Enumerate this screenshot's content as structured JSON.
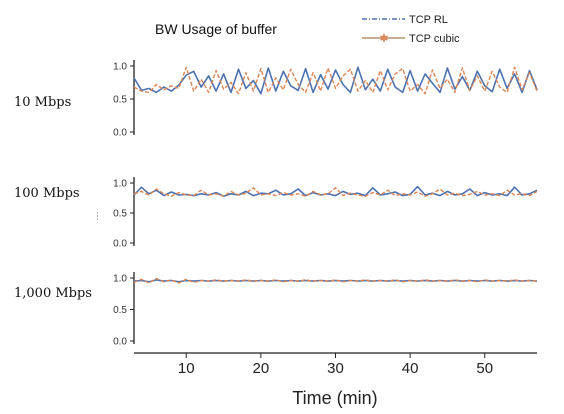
{
  "chart_data": {
    "type": "line",
    "title": "BW Usage of buffer",
    "xlabel": "Time (min)",
    "xlim": [
      3,
      57
    ],
    "xticks": [
      10,
      20,
      30,
      40,
      50
    ],
    "ylim": [
      0,
      1
    ],
    "yticks": [
      "0.0",
      "0.5",
      "1.0"
    ],
    "legend_position": "top-right",
    "x": [
      3,
      4,
      5,
      6,
      7,
      8,
      9,
      10,
      11,
      12,
      13,
      14,
      15,
      16,
      17,
      18,
      19,
      20,
      21,
      22,
      23,
      24,
      25,
      26,
      27,
      28,
      29,
      30,
      31,
      32,
      33,
      34,
      35,
      36,
      37,
      38,
      39,
      40,
      41,
      42,
      43,
      44,
      45,
      46,
      47,
      48,
      49,
      50,
      51,
      52,
      53,
      54,
      55,
      56,
      57
    ],
    "series": [
      {
        "name": "TCP RL",
        "color": "#4c72b0",
        "style": "solid"
      },
      {
        "name": "TCP cubic",
        "color": "#dd8452",
        "style": "dashed"
      }
    ],
    "panels": [
      {
        "label": "10 Mbps",
        "values": [
          [
            0.82,
            0.63,
            0.66,
            0.6,
            0.68,
            0.62,
            0.71,
            0.86,
            0.92,
            0.68,
            0.85,
            0.62,
            0.88,
            0.6,
            0.95,
            0.66,
            0.78,
            0.58,
            0.97,
            0.62,
            0.92,
            0.7,
            0.63,
            0.96,
            0.6,
            0.87,
            0.65,
            0.94,
            0.72,
            0.6,
            0.98,
            0.64,
            0.8,
            0.62,
            0.95,
            0.68,
            0.6,
            0.93,
            0.62,
            0.88,
            0.74,
            0.6,
            0.97,
            0.65,
            0.84,
            0.63,
            0.92,
            0.7,
            0.61,
            0.95,
            0.66,
            0.88,
            0.6,
            0.93,
            0.64
          ],
          [
            0.68,
            0.62,
            0.6,
            0.72,
            0.64,
            0.7,
            0.66,
            0.98,
            0.62,
            0.8,
            0.6,
            0.93,
            0.65,
            0.75,
            0.58,
            0.9,
            0.62,
            0.96,
            0.6,
            0.82,
            0.64,
            0.95,
            0.72,
            0.6,
            0.9,
            0.62,
            0.97,
            0.66,
            0.85,
            0.95,
            0.62,
            0.78,
            0.6,
            0.93,
            0.64,
            0.88,
            0.96,
            0.62,
            0.72,
            0.58,
            0.94,
            0.66,
            0.8,
            0.6,
            0.97,
            0.63,
            0.85,
            0.62,
            0.92,
            0.68,
            0.6,
            0.98,
            0.64,
            0.9,
            0.62
          ]
        ]
      },
      {
        "label": "100 Mbps",
        "values": [
          [
            0.8,
            0.93,
            0.82,
            0.88,
            0.79,
            0.85,
            0.8,
            0.81,
            0.79,
            0.82,
            0.8,
            0.84,
            0.78,
            0.82,
            0.8,
            0.86,
            0.79,
            0.83,
            0.82,
            0.88,
            0.8,
            0.82,
            0.9,
            0.79,
            0.84,
            0.8,
            0.82,
            0.79,
            0.86,
            0.81,
            0.83,
            0.79,
            0.92,
            0.8,
            0.82,
            0.85,
            0.79,
            0.81,
            0.94,
            0.8,
            0.83,
            0.79,
            0.86,
            0.8,
            0.82,
            0.9,
            0.79,
            0.84,
            0.8,
            0.82,
            0.79,
            0.93,
            0.8,
            0.82,
            0.88
          ],
          [
            0.82,
            0.86,
            0.8,
            0.9,
            0.82,
            0.78,
            0.84,
            0.8,
            0.79,
            0.88,
            0.8,
            0.82,
            0.78,
            0.86,
            0.8,
            0.83,
            0.92,
            0.8,
            0.82,
            0.79,
            0.84,
            0.8,
            0.82,
            0.78,
            0.86,
            0.8,
            0.82,
            0.92,
            0.79,
            0.83,
            0.8,
            0.78,
            0.84,
            0.8,
            0.88,
            0.79,
            0.82,
            0.8,
            0.85,
            0.78,
            0.82,
            0.9,
            0.8,
            0.83,
            0.79,
            0.81,
            0.86,
            0.8,
            0.82,
            0.79,
            0.88,
            0.8,
            0.82,
            0.79,
            0.86
          ]
        ]
      },
      {
        "label": "1,000 Mbps",
        "values": [
          [
            0.95,
            0.96,
            0.94,
            0.97,
            0.95,
            0.96,
            0.94,
            0.96,
            0.95,
            0.96,
            0.95,
            0.96,
            0.95,
            0.96,
            0.95,
            0.96,
            0.95,
            0.96,
            0.95,
            0.96,
            0.95,
            0.96,
            0.95,
            0.96,
            0.95,
            0.96,
            0.95,
            0.96,
            0.95,
            0.96,
            0.95,
            0.96,
            0.95,
            0.96,
            0.95,
            0.96,
            0.95,
            0.96,
            0.95,
            0.96,
            0.95,
            0.96,
            0.95,
            0.96,
            0.95,
            0.96,
            0.95,
            0.96,
            0.95,
            0.96,
            0.95,
            0.96,
            0.95,
            0.96,
            0.95
          ],
          [
            0.93,
            0.98,
            0.92,
            0.99,
            0.94,
            0.97,
            0.92,
            0.98,
            0.93,
            0.96,
            0.95,
            0.97,
            0.95,
            0.96,
            0.95,
            0.97,
            0.95,
            0.96,
            0.95,
            0.97,
            0.94,
            0.96,
            0.95,
            0.97,
            0.95,
            0.96,
            0.95,
            0.97,
            0.94,
            0.96,
            0.95,
            0.97,
            0.95,
            0.96,
            0.95,
            0.97,
            0.94,
            0.96,
            0.95,
            0.97,
            0.95,
            0.96,
            0.95,
            0.97,
            0.95,
            0.96,
            0.94,
            0.97,
            0.95,
            0.96,
            0.95,
            0.97,
            0.95,
            0.96,
            0.95
          ]
        ]
      }
    ]
  }
}
